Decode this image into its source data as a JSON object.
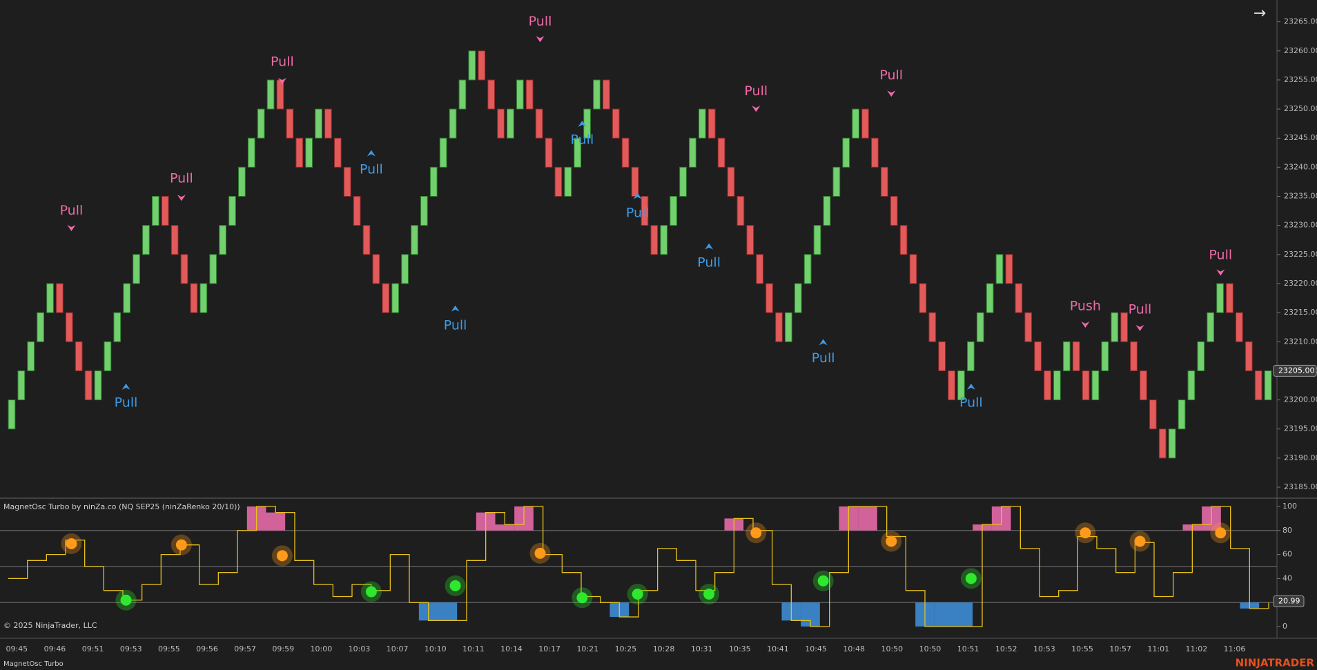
{
  "chart_data": {
    "type": "renko",
    "panel_title": "MagnetOsc Turbo by ninZa.co (NQ SEP25 (ninZaRenko 20/10))",
    "copyright": "© 2025 NinjaTrader, LLC",
    "tab": "MagnetOsc Turbo",
    "brand": "NINJATRADER",
    "up_color": "#72d06e",
    "down_color": "#e35a5a",
    "open": 23195,
    "closes": [
      23200,
      23205,
      23210,
      23215,
      23220,
      23215,
      23210,
      23205,
      23200,
      23205,
      23210,
      23215,
      23220,
      23225,
      23230,
      23235,
      23230,
      23225,
      23220,
      23215,
      23220,
      23225,
      23230,
      23235,
      23240,
      23245,
      23250,
      23255,
      23250,
      23245,
      23240,
      23245,
      23250,
      23245,
      23240,
      23235,
      23230,
      23225,
      23220,
      23215,
      23220,
      23225,
      23230,
      23235,
      23240,
      23245,
      23250,
      23255,
      23260,
      23255,
      23250,
      23245,
      23250,
      23255,
      23250,
      23245,
      23240,
      23235,
      23240,
      23245,
      23250,
      23255,
      23250,
      23245,
      23240,
      23235,
      23230,
      23225,
      23230,
      23235,
      23240,
      23245,
      23250,
      23245,
      23240,
      23235,
      23230,
      23225,
      23220,
      23215,
      23210,
      23215,
      23220,
      23225,
      23230,
      23235,
      23240,
      23245,
      23250,
      23245,
      23240,
      23235,
      23230,
      23225,
      23220,
      23215,
      23210,
      23205,
      23200,
      23205,
      23210,
      23215,
      23220,
      23225,
      23220,
      23215,
      23210,
      23205,
      23200,
      23205,
      23210,
      23205,
      23200,
      23205,
      23210,
      23215,
      23210,
      23205,
      23200,
      23195,
      23190,
      23195,
      23200,
      23205,
      23210,
      23215,
      23220,
      23215,
      23210,
      23205,
      23200,
      23205
    ],
    "ylim": [
      23185,
      23265
    ],
    "yticks": [
      {
        "value": 23185,
        "label": "23185.00"
      },
      {
        "value": 23190,
        "label": "23190.00"
      },
      {
        "value": 23195,
        "label": "23195.00"
      },
      {
        "value": 23200,
        "label": "23200.00"
      },
      {
        "value": 23205,
        "label": "23205.00"
      },
      {
        "value": 23210,
        "label": "23210.00"
      },
      {
        "value": 23215,
        "label": "23215.00"
      },
      {
        "value": 23220,
        "label": "23220.00"
      },
      {
        "value": 23225,
        "label": "23225.00"
      },
      {
        "value": 23230,
        "label": "23230.00"
      },
      {
        "value": 23235,
        "label": "23235.00"
      },
      {
        "value": 23240,
        "label": "23240.00"
      },
      {
        "value": 23245,
        "label": "23245.00"
      },
      {
        "value": 23250,
        "label": "23250.00"
      },
      {
        "value": 23255,
        "label": "23255.00"
      },
      {
        "value": 23260,
        "label": "23260.00"
      },
      {
        "value": 23265,
        "label": "23265.00"
      }
    ],
    "last_price": {
      "value": 23205,
      "label": "23205.00"
    },
    "signals": [
      "Pull",
      "Pull",
      "Pull",
      "Pull",
      "Pull",
      "Pull",
      "Pull",
      "Pull",
      "Pull",
      "Pull",
      "Pull",
      "Pull",
      "Pull",
      "Pull",
      "Push",
      "Pull",
      "Pull"
    ],
    "oscillator": {
      "color": "#e8c21a",
      "values": [
        40,
        55,
        60,
        72,
        50,
        30,
        22,
        35,
        60,
        68,
        35,
        45,
        80,
        100,
        95,
        55,
        35,
        25,
        35,
        30,
        60,
        20,
        5,
        5,
        55,
        95,
        85,
        100,
        60,
        45,
        25,
        20,
        8,
        30,
        65,
        55,
        30,
        45,
        90,
        80,
        35,
        5,
        0,
        45,
        100,
        100,
        75,
        30,
        0,
        0,
        0,
        85,
        100,
        65,
        25,
        30,
        75,
        65,
        45,
        70,
        25,
        45,
        85,
        100,
        65,
        15,
        20
      ],
      "upper_color": "#f26fb0",
      "lower_color": "#3f93e0",
      "upper": 80,
      "lower": 20
    },
    "dot_series": [
      {
        "color": "#ff9a1a",
        "values": [
          69,
          68,
          59,
          61,
          78,
          71,
          78,
          71,
          78
        ]
      },
      {
        "color": "#2ee82e",
        "values": [
          22,
          29,
          34,
          24,
          27,
          27,
          38,
          40
        ]
      }
    ],
    "y2lim": [
      0,
      100
    ],
    "y2ticks": [
      0,
      40,
      60,
      80,
      100
    ],
    "levels": [
      80,
      50,
      20
    ],
    "osc_last": 20.99,
    "categories": [
      "09:45",
      "09:46",
      "09:51",
      "09:53",
      "09:55",
      "09:56",
      "09:57",
      "09:59",
      "10:00",
      "10:03",
      "10:07",
      "10:10",
      "10:11",
      "10:14",
      "10:17",
      "10:21",
      "10:25",
      "10:28",
      "10:31",
      "10:35",
      "10:41",
      "10:45",
      "10:48",
      "10:50",
      "10:50",
      "10:51",
      "10:52",
      "10:53",
      "10:55",
      "10:57",
      "11:01",
      "11:02",
      "11:06"
    ]
  }
}
